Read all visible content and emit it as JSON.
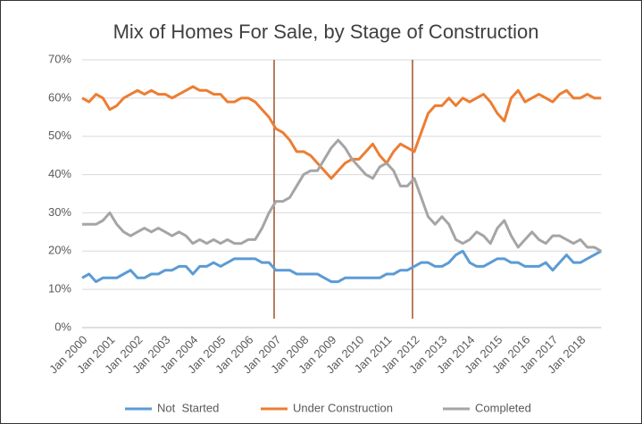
{
  "chart_data": {
    "type": "line",
    "title": "Mix of Homes For Sale, by Stage of Construction",
    "categories": [
      "Jan 2000",
      null,
      null,
      null,
      "Jan 2001",
      null,
      null,
      null,
      "Jan 2002",
      null,
      null,
      null,
      "Jan 2003",
      null,
      null,
      null,
      "Jan 2004",
      null,
      null,
      null,
      "Jan 2005",
      null,
      null,
      null,
      "Jan 2006",
      null,
      null,
      null,
      "Jan 2007",
      null,
      null,
      null,
      "Jan 2008",
      null,
      null,
      null,
      "Jan 2009",
      null,
      null,
      null,
      "Jan 2010",
      null,
      null,
      null,
      "Jan 2011",
      null,
      null,
      null,
      "Jan 2012",
      null,
      null,
      null,
      "Jan 2013",
      null,
      null,
      null,
      "Jan 2014",
      null,
      null,
      null,
      "Jan 2015",
      null,
      null,
      null,
      "Jan 2016",
      null,
      null,
      null,
      "Jan 2017",
      null,
      null,
      null,
      "Jan 2018",
      null,
      null,
      null
    ],
    "series": [
      {
        "name": "Not  Started",
        "color": "#5b9bd5",
        "values": [
          13,
          14,
          12,
          13,
          13,
          13,
          14,
          15,
          13,
          13,
          14,
          14,
          15,
          15,
          16,
          16,
          14,
          16,
          16,
          17,
          16,
          17,
          18,
          18,
          18,
          18,
          17,
          17,
          15,
          15,
          15,
          14,
          14,
          14,
          14,
          13,
          12,
          12,
          13,
          13,
          13,
          13,
          13,
          13,
          14,
          14,
          15,
          15,
          16,
          17,
          17,
          16,
          16,
          17,
          19,
          20,
          17,
          16,
          16,
          17,
          18,
          18,
          17,
          17,
          16,
          16,
          16,
          17,
          15,
          17,
          19,
          17,
          17,
          18,
          19,
          20
        ]
      },
      {
        "name": "Under Construction",
        "color": "#ed7d31",
        "values": [
          60,
          59,
          61,
          60,
          57,
          58,
          60,
          61,
          62,
          61,
          62,
          61,
          61,
          60,
          61,
          62,
          63,
          62,
          62,
          61,
          61,
          59,
          59,
          60,
          60,
          59,
          57,
          55,
          52,
          51,
          49,
          46,
          46,
          45,
          43,
          41,
          39,
          41,
          43,
          44,
          44,
          46,
          48,
          45,
          43,
          46,
          48,
          47,
          46,
          51,
          56,
          58,
          58,
          60,
          58,
          60,
          59,
          60,
          61,
          59,
          56,
          54,
          60,
          62,
          59,
          60,
          61,
          60,
          59,
          61,
          62,
          60,
          60,
          61,
          60,
          60
        ]
      },
      {
        "name": "Completed",
        "color": "#a5a5a5",
        "values": [
          27,
          27,
          27,
          28,
          30,
          27,
          25,
          24,
          25,
          26,
          25,
          26,
          25,
          24,
          25,
          24,
          22,
          23,
          22,
          23,
          22,
          23,
          22,
          22,
          23,
          23,
          26,
          30,
          33,
          33,
          34,
          37,
          40,
          41,
          41,
          44,
          47,
          49,
          47,
          44,
          42,
          40,
          39,
          42,
          43,
          41,
          37,
          37,
          39,
          34,
          29,
          27,
          29,
          27,
          23,
          22,
          23,
          25,
          24,
          22,
          26,
          28,
          24,
          21,
          23,
          25,
          23,
          22,
          24,
          24,
          23,
          22,
          23,
          21,
          21,
          20
        ]
      }
    ],
    "ylim": [
      0,
      70
    ],
    "yticks": [
      {
        "value": 0,
        "label": "0%"
      },
      {
        "value": 10,
        "label": "10%"
      },
      {
        "value": 20,
        "label": "20%"
      },
      {
        "value": 30,
        "label": "30%"
      },
      {
        "value": 40,
        "label": "40%"
      },
      {
        "value": 50,
        "label": "50%"
      },
      {
        "value": 60,
        "label": "60%"
      },
      {
        "value": 70,
        "label": "70%"
      }
    ],
    "grid": true,
    "legend": "bottom",
    "vlines": [
      "Jan 2007",
      "Jan 2012"
    ],
    "vline_color": "#a0522d"
  }
}
